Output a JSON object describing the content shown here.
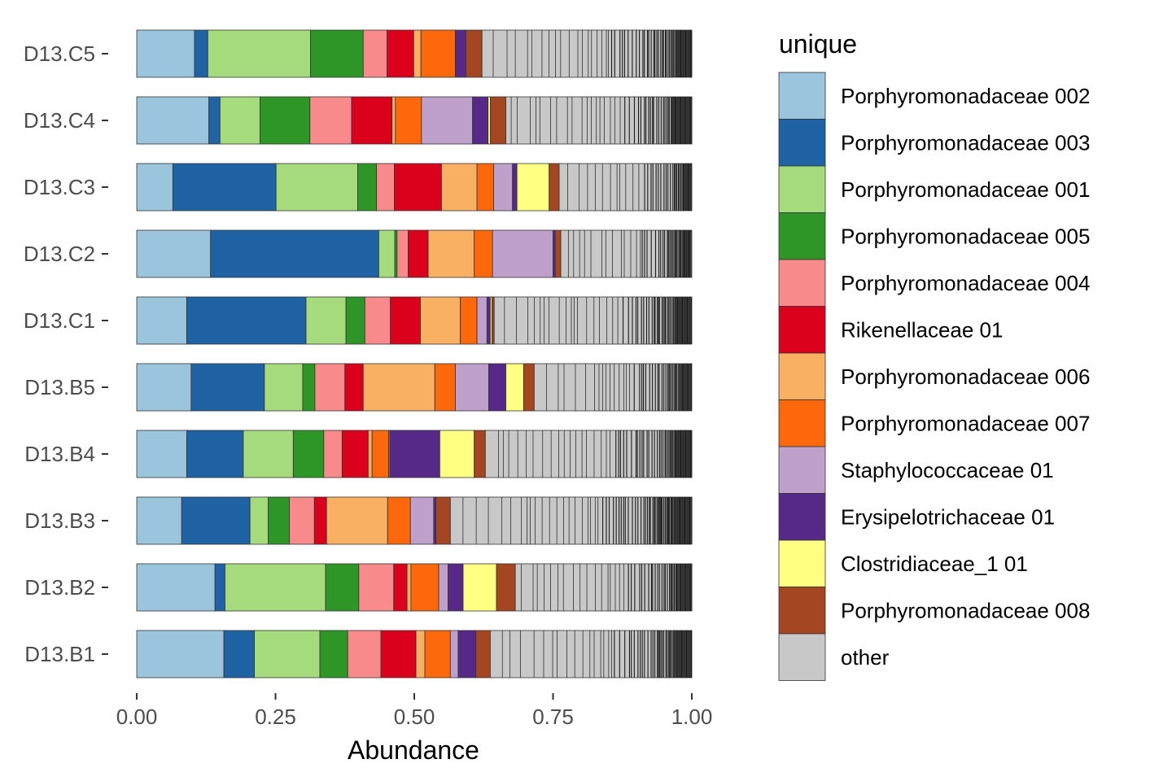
{
  "chart_data": {
    "type": "bar",
    "orientation": "horizontal",
    "stacked": true,
    "xlabel": "Abundance",
    "ylabel": "",
    "xlim": [
      0,
      1
    ],
    "x_ticks": [
      "0.00",
      "0.25",
      "0.50",
      "0.75",
      "1.00"
    ],
    "categories": [
      "D13.B1",
      "D13.B2",
      "D13.B3",
      "D13.B4",
      "D13.B5",
      "D13.C1",
      "D13.C2",
      "D13.C3",
      "D13.C4",
      "D13.C5"
    ],
    "legend": {
      "title": "unique",
      "position": "right"
    },
    "series": [
      {
        "name": "Porphyromonadaceae 002",
        "color": "#9AC5DC",
        "values": [
          0.157,
          0.141,
          0.081,
          0.09,
          0.098,
          0.09,
          0.133,
          0.065,
          0.13,
          0.104
        ]
      },
      {
        "name": "Porphyromonadaceae 003",
        "color": "#1F63A5",
        "values": [
          0.055,
          0.018,
          0.123,
          0.102,
          0.132,
          0.215,
          0.303,
          0.186,
          0.02,
          0.024
        ]
      },
      {
        "name": "Porphyromonadaceae 001",
        "color": "#A5DB7C",
        "values": [
          0.118,
          0.181,
          0.033,
          0.09,
          0.069,
          0.072,
          0.029,
          0.147,
          0.072,
          0.185
        ]
      },
      {
        "name": "Porphyromonadaceae 005",
        "color": "#2E9627",
        "values": [
          0.05,
          0.06,
          0.038,
          0.055,
          0.022,
          0.034,
          0.004,
          0.034,
          0.09,
          0.095
        ]
      },
      {
        "name": "Porphyromonadaceae 004",
        "color": "#F98A8B",
        "values": [
          0.06,
          0.063,
          0.045,
          0.033,
          0.054,
          0.046,
          0.02,
          0.032,
          0.075,
          0.043
        ]
      },
      {
        "name": "Rikenellaceae 01",
        "color": "#DB001C",
        "values": [
          0.063,
          0.024,
          0.022,
          0.047,
          0.033,
          0.054,
          0.036,
          0.085,
          0.073,
          0.048
        ]
      },
      {
        "name": "Porphyromonadaceae 006",
        "color": "#FAB062",
        "values": [
          0.016,
          0.007,
          0.11,
          0.007,
          0.129,
          0.072,
          0.083,
          0.064,
          0.006,
          0.013
        ]
      },
      {
        "name": "Porphyromonadaceae 007",
        "color": "#FE680C",
        "values": [
          0.046,
          0.05,
          0.041,
          0.03,
          0.037,
          0.03,
          0.033,
          0.03,
          0.047,
          0.062
        ]
      },
      {
        "name": "Staphylococcaceae 01",
        "color": "#BEA0CA",
        "values": [
          0.014,
          0.017,
          0.042,
          0.002,
          0.06,
          0.018,
          0.109,
          0.034,
          0.092,
          0.0
        ]
      },
      {
        "name": "Erysipelotrichaceae 01",
        "color": "#562888",
        "values": [
          0.032,
          0.027,
          0.004,
          0.09,
          0.031,
          0.006,
          0.004,
          0.008,
          0.028,
          0.019
        ]
      },
      {
        "name": "Clostridiaceae_1 01",
        "color": "#FFFF81",
        "values": [
          0.0,
          0.06,
          0.0,
          0.062,
          0.032,
          0.003,
          0.0,
          0.058,
          0.004,
          0.0
        ]
      },
      {
        "name": "Porphyromonadaceae 008",
        "color": "#A34621",
        "values": [
          0.026,
          0.034,
          0.026,
          0.02,
          0.019,
          0.004,
          0.01,
          0.018,
          0.028,
          0.029
        ]
      },
      {
        "name": "other",
        "color": "#C8C8C8",
        "values": [
          0.363,
          0.318,
          0.435,
          0.372,
          0.284,
          0.356,
          0.236,
          0.239,
          0.335,
          0.378
        ]
      }
    ]
  }
}
